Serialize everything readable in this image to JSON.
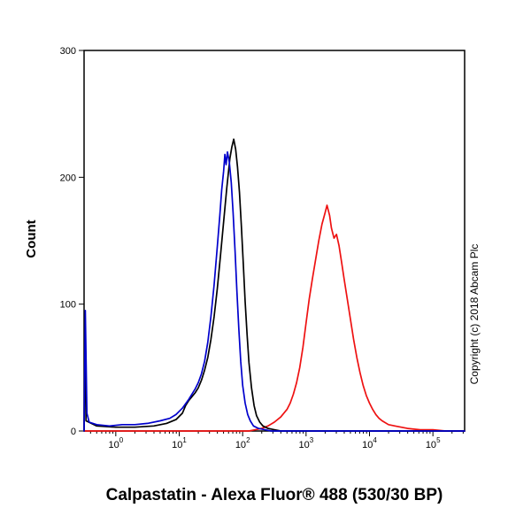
{
  "chart_data": {
    "type": "line",
    "title": "Calpastatin - Alexa Fluor® 488 (530/30 BP)",
    "ylabel": "Count",
    "copyright": "Copyright (c) 2018 Abcam Plc",
    "x_scale": "log10",
    "x_range_log": [
      -0.5,
      5.5
    ],
    "x_major_ticks_exponents": [
      0,
      1,
      2,
      3,
      4,
      5
    ],
    "y_range": [
      0,
      300
    ],
    "y_major_ticks": [
      0,
      100,
      200,
      300
    ],
    "axis_color": "#000000",
    "background_color": "#ffffff",
    "legend": "none",
    "grid": false,
    "series": [
      {
        "name": "red-curve",
        "color": "#ee1111",
        "points_log10x_count": [
          [
            -0.5,
            0
          ],
          [
            2.1,
            0
          ],
          [
            2.2,
            1
          ],
          [
            2.3,
            2
          ],
          [
            2.4,
            4
          ],
          [
            2.5,
            7
          ],
          [
            2.6,
            11
          ],
          [
            2.7,
            17
          ],
          [
            2.75,
            22
          ],
          [
            2.8,
            29
          ],
          [
            2.85,
            38
          ],
          [
            2.9,
            50
          ],
          [
            2.95,
            66
          ],
          [
            3.0,
            85
          ],
          [
            3.05,
            104
          ],
          [
            3.1,
            120
          ],
          [
            3.15,
            135
          ],
          [
            3.2,
            150
          ],
          [
            3.25,
            163
          ],
          [
            3.3,
            172
          ],
          [
            3.33,
            178
          ],
          [
            3.37,
            170
          ],
          [
            3.4,
            160
          ],
          [
            3.44,
            152
          ],
          [
            3.48,
            155
          ],
          [
            3.52,
            146
          ],
          [
            3.56,
            133
          ],
          [
            3.6,
            120
          ],
          [
            3.65,
            104
          ],
          [
            3.7,
            88
          ],
          [
            3.75,
            72
          ],
          [
            3.8,
            58
          ],
          [
            3.85,
            46
          ],
          [
            3.9,
            36
          ],
          [
            3.95,
            28
          ],
          [
            4.0,
            22
          ],
          [
            4.05,
            17
          ],
          [
            4.1,
            13
          ],
          [
            4.15,
            10
          ],
          [
            4.2,
            8
          ],
          [
            4.3,
            5
          ],
          [
            4.4,
            4
          ],
          [
            4.5,
            3
          ],
          [
            4.6,
            2
          ],
          [
            4.8,
            1
          ],
          [
            5.0,
            1
          ],
          [
            5.2,
            0
          ],
          [
            5.5,
            0
          ]
        ]
      },
      {
        "name": "black-curve",
        "color": "#000000",
        "points_log10x_count": [
          [
            -0.5,
            0
          ],
          [
            -0.49,
            85
          ],
          [
            -0.47,
            8
          ],
          [
            -0.3,
            4
          ],
          [
            0.0,
            3
          ],
          [
            0.3,
            3
          ],
          [
            0.6,
            4
          ],
          [
            0.8,
            6
          ],
          [
            0.95,
            9
          ],
          [
            1.05,
            14
          ],
          [
            1.1,
            20
          ],
          [
            1.15,
            24
          ],
          [
            1.2,
            27
          ],
          [
            1.25,
            30
          ],
          [
            1.3,
            34
          ],
          [
            1.35,
            40
          ],
          [
            1.4,
            48
          ],
          [
            1.45,
            58
          ],
          [
            1.5,
            72
          ],
          [
            1.55,
            90
          ],
          [
            1.6,
            112
          ],
          [
            1.65,
            138
          ],
          [
            1.7,
            165
          ],
          [
            1.75,
            192
          ],
          [
            1.8,
            215
          ],
          [
            1.83,
            224
          ],
          [
            1.86,
            230
          ],
          [
            1.89,
            222
          ],
          [
            1.92,
            208
          ],
          [
            1.95,
            188
          ],
          [
            1.98,
            162
          ],
          [
            2.01,
            132
          ],
          [
            2.04,
            102
          ],
          [
            2.07,
            76
          ],
          [
            2.1,
            54
          ],
          [
            2.14,
            34
          ],
          [
            2.18,
            20
          ],
          [
            2.22,
            12
          ],
          [
            2.27,
            7
          ],
          [
            2.32,
            4
          ],
          [
            2.4,
            2
          ],
          [
            2.5,
            1
          ],
          [
            2.6,
            0
          ],
          [
            5.5,
            0
          ]
        ]
      },
      {
        "name": "blue-curve",
        "color": "#0000cc",
        "points_log10x_count": [
          [
            -0.5,
            0
          ],
          [
            -0.48,
            95
          ],
          [
            -0.455,
            14
          ],
          [
            -0.42,
            7
          ],
          [
            -0.3,
            5
          ],
          [
            -0.1,
            4
          ],
          [
            0.1,
            5
          ],
          [
            0.3,
            5
          ],
          [
            0.5,
            6
          ],
          [
            0.7,
            8
          ],
          [
            0.85,
            10
          ],
          [
            0.95,
            13
          ],
          [
            1.05,
            18
          ],
          [
            1.15,
            25
          ],
          [
            1.25,
            33
          ],
          [
            1.3,
            38
          ],
          [
            1.35,
            45
          ],
          [
            1.4,
            55
          ],
          [
            1.45,
            70
          ],
          [
            1.5,
            90
          ],
          [
            1.55,
            115
          ],
          [
            1.6,
            145
          ],
          [
            1.64,
            170
          ],
          [
            1.67,
            190
          ],
          [
            1.7,
            205
          ],
          [
            1.72,
            218
          ],
          [
            1.74,
            210
          ],
          [
            1.76,
            220
          ],
          [
            1.79,
            212
          ],
          [
            1.82,
            196
          ],
          [
            1.85,
            172
          ],
          [
            1.88,
            142
          ],
          [
            1.91,
            110
          ],
          [
            1.94,
            80
          ],
          [
            1.97,
            55
          ],
          [
            2.0,
            36
          ],
          [
            2.04,
            22
          ],
          [
            2.08,
            13
          ],
          [
            2.12,
            8
          ],
          [
            2.17,
            4
          ],
          [
            2.25,
            2
          ],
          [
            2.35,
            1
          ],
          [
            2.45,
            0
          ],
          [
            5.5,
            0
          ]
        ]
      }
    ]
  }
}
